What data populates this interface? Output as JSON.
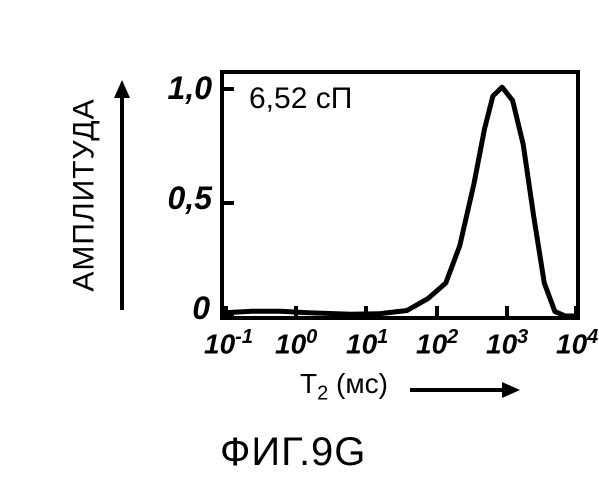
{
  "chart": {
    "type": "line",
    "annotation": "6,52 сП",
    "y_axis": {
      "label": "АМПЛИТУДА",
      "ticks": [
        "1,0",
        "0,5",
        "0"
      ],
      "fontsize": 32,
      "lim": [
        0,
        1.1
      ]
    },
    "x_axis": {
      "label": "T₂ (мс)",
      "ticks": [
        "10",
        "10",
        "10",
        "10",
        "10",
        "10"
      ],
      "tick_exps": [
        "-1",
        "0",
        "1",
        "2",
        "3",
        "4"
      ],
      "fontsize": 28,
      "scale": "log",
      "lim": [
        -1,
        4
      ]
    },
    "curve": {
      "points_x": [
        -1.0,
        -0.6,
        -0.2,
        0.2,
        0.8,
        1.2,
        1.6,
        1.9,
        2.15,
        2.35,
        2.55,
        2.7,
        2.82,
        2.95,
        3.1,
        3.25,
        3.4,
        3.55,
        3.7,
        3.85,
        4.0
      ],
      "points_y": [
        0.015,
        0.022,
        0.022,
        0.015,
        0.008,
        0.01,
        0.025,
        0.08,
        0.15,
        0.32,
        0.6,
        0.85,
        1.0,
        1.04,
        0.98,
        0.78,
        0.45,
        0.15,
        0.02,
        0.0,
        0.0
      ],
      "color": "#000000",
      "width": 5
    },
    "border_color": "#000000",
    "border_width": 4,
    "background_color": "#ffffff"
  },
  "caption": "ФИГ.9G"
}
